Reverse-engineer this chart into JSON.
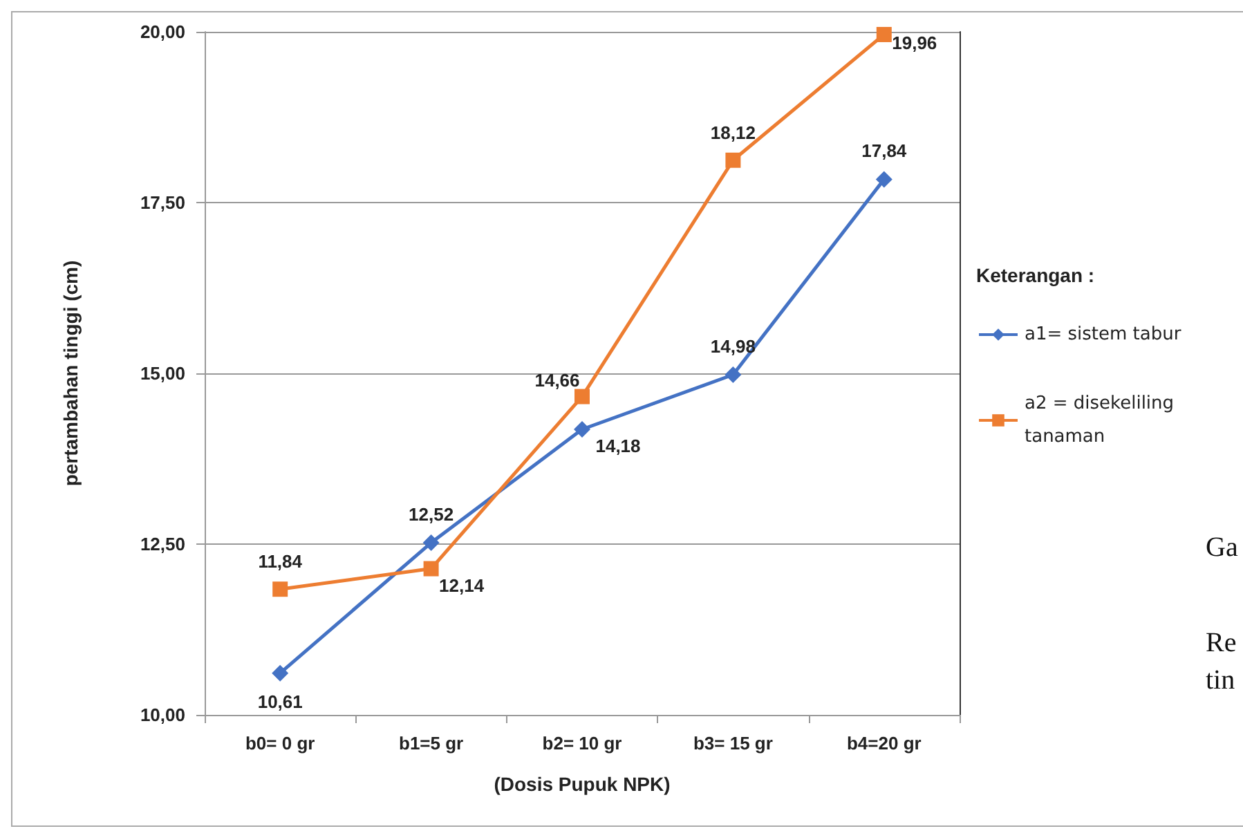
{
  "chart_data": {
    "type": "line",
    "xlabel": "(Dosis Pupuk NPK)",
    "ylabel": "pertambahan tinggi (cm)",
    "legend_title": "Keterangan :",
    "categories": [
      "b0= 0 gr",
      "b1=5 gr",
      "b2= 10 gr",
      "b3= 15 gr",
      "b4=20 gr"
    ],
    "series": [
      {
        "name": "a1= sistem tabur",
        "color": "#4472c4",
        "marker": "diamond",
        "values": [
          10.61,
          12.52,
          14.18,
          14.98,
          17.84
        ],
        "value_labels": [
          "10,61",
          "12,52",
          "14,18",
          "14,98",
          "17,84"
        ]
      },
      {
        "name": "a2 = disekeliling tanaman",
        "color": "#ed7d31",
        "marker": "square",
        "values": [
          11.84,
          12.14,
          14.66,
          18.12,
          19.96
        ],
        "value_labels": [
          "11,84",
          "12,14",
          "14,66",
          "18,12",
          "19,96"
        ]
      }
    ],
    "ylim": [
      10,
      20
    ],
    "yticks": [
      {
        "value": 10,
        "label": "10,00"
      },
      {
        "value": 12.5,
        "label": "12,50"
      },
      {
        "value": 15,
        "label": "15,00"
      },
      {
        "value": 17.5,
        "label": "17,50"
      },
      {
        "value": 20,
        "label": "20,00"
      }
    ],
    "grid": "y",
    "legend": "right",
    "line_style": "solid",
    "annotations": [
      "Ga",
      "Re",
      "tin"
    ]
  }
}
